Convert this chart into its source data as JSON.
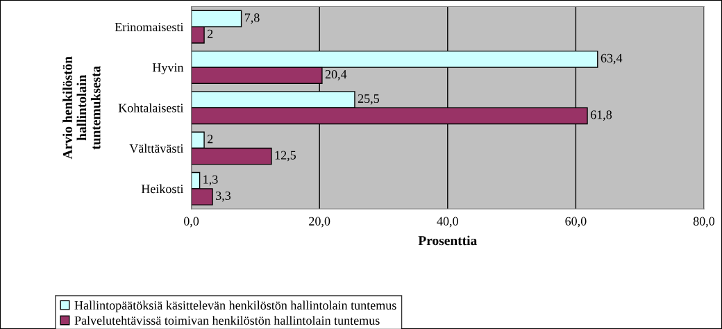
{
  "chart_data": {
    "type": "bar",
    "orientation": "horizontal",
    "xlabel": "Prosenttia",
    "ylabel": "Arvio henkilöstön\nhallintolain\ntuntemuksesta",
    "categories": [
      "Erinomaisesti",
      "Hyvin",
      "Kohtalaisesti",
      "Välttävästi",
      "Heikosti"
    ],
    "series": [
      {
        "name": "Hallintopäätöksiä käsittelevän henkilöstön hallintolain tuntemus",
        "color": "#ccffff",
        "values": [
          7.8,
          63.4,
          25.5,
          2,
          1.3
        ],
        "value_labels": [
          "7,8",
          "63,4",
          "25,5",
          "2",
          "1,3"
        ]
      },
      {
        "name": "Palvelutehtävissä toimivan henkilöstön hallintolain tuntemus",
        "color": "#993366",
        "values": [
          2,
          20.4,
          61.8,
          12.5,
          3.3
        ],
        "value_labels": [
          "2",
          "20,4",
          "61,8",
          "12,5",
          "3,3"
        ]
      }
    ],
    "xlim": [
      0,
      80
    ],
    "xticks": [
      {
        "value": 0,
        "label": "0,0"
      },
      {
        "value": 20,
        "label": "20,0"
      },
      {
        "value": 40,
        "label": "40,0"
      },
      {
        "value": 60,
        "label": "60,0"
      },
      {
        "value": 80,
        "label": "80,0"
      }
    ],
    "grid": "x",
    "legend": "bottom left"
  }
}
